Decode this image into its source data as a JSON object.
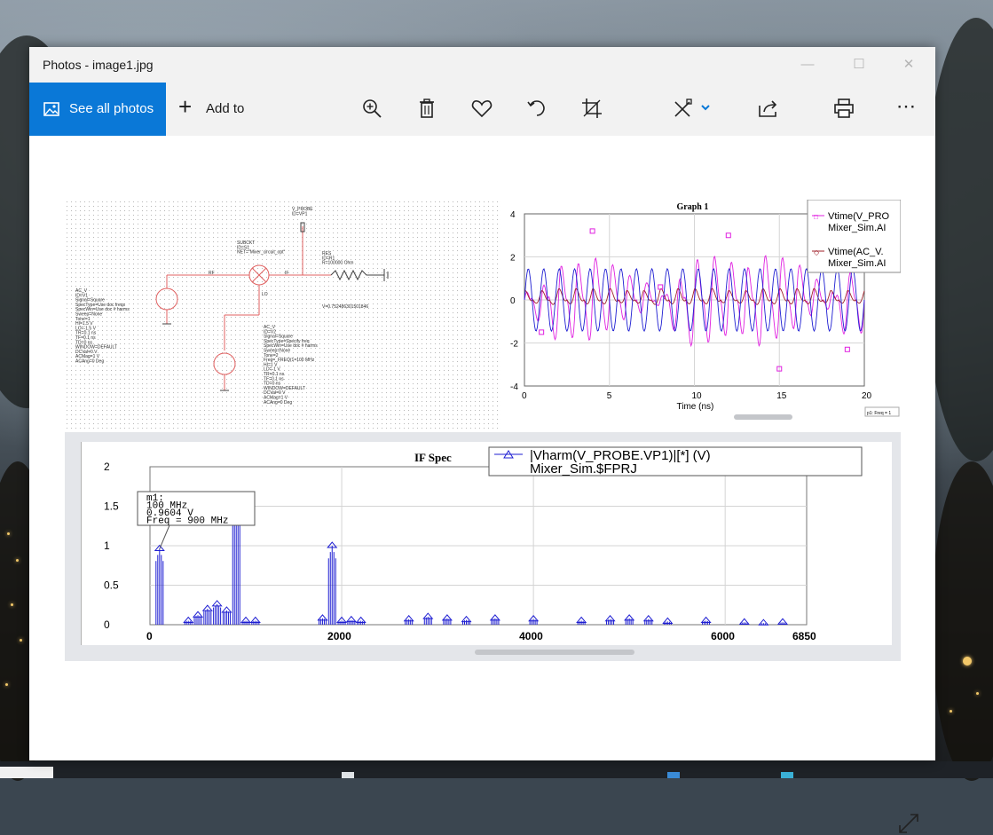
{
  "window": {
    "title": "Photos - image1.jpg",
    "min_glyph": "—",
    "max_glyph": "☐",
    "close_glyph": "✕"
  },
  "toolbar": {
    "see_all_label": "See all photos",
    "add_to_label": "Add to",
    "icons": [
      "zoom-in-icon",
      "delete-icon",
      "favorite-icon",
      "rotate-icon",
      "crop-icon",
      "edit-icon",
      "chevron-down-icon",
      "share-icon",
      "print-icon",
      "more-icon"
    ],
    "more_glyph": "⋯",
    "accent": "#0a78d7"
  },
  "schematic": {
    "probe": [
      "V_PROBE",
      "ID=VP1"
    ],
    "subckt": [
      "SUBCKT",
      "ID=S1",
      "NET=\"Mixer_circuit_opt\""
    ],
    "res": [
      "RES",
      "ID=R1",
      "R=100000 Ohm"
    ],
    "voltage": "V=0.752486301501846",
    "port_labels": [
      "RF",
      "IF",
      "LO"
    ],
    "source1": [
      "AC_V",
      "ID=V1",
      "Signal=Square",
      "SpecType=Use doc freqs",
      "SpecWin=Use doc # harms",
      "Sweep=None",
      "Tone=1",
      "HI=1.5 V",
      "LO=-1.5 V",
      "TR=0.1 ns",
      "TF=0.1 ns",
      "TD=0 ns",
      "WINDOW=DEFAULT",
      "DCVal=0 V",
      "ACMag=1 V",
      "ACAng=0 Deg"
    ],
    "source2": [
      "AC_V",
      "ID=V2",
      "Signal=Square",
      "SpecType=Specify freq",
      "SpecWin=Use doc # harms",
      "Sweep=None",
      "Tone=2",
      "Freq=_FREQ(1=100 MHz",
      "HI=1 V",
      "LO=-1 V",
      "TR=0.1 ns",
      "TF=0.1 ns",
      "TD=0 ns",
      "WINDOW=DEFAULT",
      "DCVal=0 V",
      "ACMag=1 V",
      "ACAng=0 Deg"
    ]
  },
  "graph1": {
    "title": "Graph 1",
    "xlabel": "Time (ns)",
    "legend": [
      {
        "line1": "Vtime(V_PRO",
        "line2": "Mixer_Sim.AI",
        "color": "#e020e0",
        "marker": "□"
      },
      {
        "line1": "Vtime(AC_V.",
        "line2": "Mixer_Sim.AI",
        "color": "#a0202a",
        "marker": "◇"
      }
    ],
    "footnote": "p1: Freq = 1",
    "x_ticks": [
      "0",
      "5",
      "10",
      "15",
      "20"
    ],
    "y_ticks": [
      "4",
      "2",
      "0",
      "-2",
      "-4"
    ]
  },
  "spectrum": {
    "title": "IF Spec",
    "legend_line1": "|Vharm(V_PROBE.VP1)|[*] (V)",
    "legend_line2": "Mixer_Sim.$FPRJ",
    "marker_lines": [
      "m1:",
      "100 MHz",
      "0.9604 V",
      "Freq = 900 MHz"
    ],
    "x_ticks": [
      "0",
      "2000",
      "4000",
      "6000",
      "6850"
    ],
    "y_ticks": [
      "2",
      "1.5",
      "1",
      "0.5",
      "0"
    ],
    "color": "#1e1ed2"
  },
  "chart_data": [
    {
      "type": "line",
      "title": "Graph 1",
      "xlabel": "Time (ns)",
      "ylabel": "",
      "xlim": [
        0,
        20
      ],
      "ylim": [
        -4,
        4
      ],
      "series": [
        {
          "name": "Vtime(V_PRO",
          "x": [
            0,
            1,
            2,
            3,
            4,
            5,
            6,
            7,
            8,
            9,
            10,
            11,
            12,
            13,
            14,
            15,
            16,
            17,
            18,
            19,
            20
          ],
          "values": [
            0.8,
            -1.5,
            2.8,
            -3.0,
            3.2,
            -2.6,
            1.8,
            -1.2,
            0.6,
            -2.0,
            3.3,
            -3.4,
            3.0,
            -2.8,
            3.5,
            -3.2,
            2.5,
            -1.5,
            0.9,
            -2.3,
            2.6
          ]
        },
        {
          "name": "Vtime(AC_V.",
          "x": [
            0,
            1,
            2,
            3,
            4,
            5,
            6,
            7,
            8,
            9,
            10,
            11,
            12,
            13,
            14,
            15,
            16,
            17,
            18,
            19,
            20
          ],
          "values": [
            0.5,
            -0.5,
            0.6,
            -0.6,
            0.6,
            -0.6,
            0.5,
            -0.5,
            0.6,
            -0.6,
            0.6,
            -0.6,
            0.5,
            -0.5,
            0.6,
            -0.6,
            0.6,
            -0.6,
            0.5,
            -0.5,
            0.5
          ]
        }
      ]
    },
    {
      "type": "bar",
      "title": "IF Spec",
      "xlabel": "",
      "ylabel": "",
      "xlim": [
        0,
        6850
      ],
      "ylim": [
        0,
        2
      ],
      "series": [
        {
          "name": "|Vharm(V_PROBE.VP1)|[*] (V)",
          "x": [
            100,
            400,
            500,
            600,
            700,
            800,
            900,
            1000,
            1100,
            1800,
            1900,
            2000,
            2100,
            2200,
            2700,
            2900,
            3100,
            3300,
            3600,
            4000,
            4500,
            4800,
            5000,
            5200,
            5400,
            5800,
            6200,
            6400,
            6600
          ],
          "values": [
            0.96,
            0.05,
            0.12,
            0.2,
            0.26,
            0.18,
            1.6,
            0.05,
            0.05,
            0.08,
            1.0,
            0.05,
            0.06,
            0.05,
            0.07,
            0.1,
            0.08,
            0.06,
            0.08,
            0.07,
            0.05,
            0.07,
            0.08,
            0.07,
            0.04,
            0.05,
            0.03,
            0.02,
            0.03
          ]
        }
      ]
    }
  ]
}
